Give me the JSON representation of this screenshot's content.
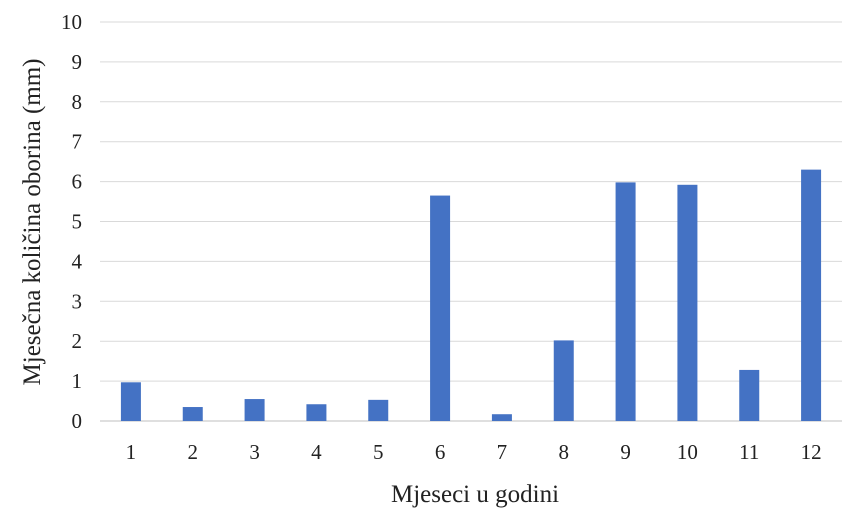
{
  "chart_data": {
    "type": "bar",
    "title": "",
    "xlabel": "Mjeseci u godini",
    "ylabel": "Mjesečna količina oborina (mm)",
    "categories": [
      "1",
      "2",
      "3",
      "4",
      "5",
      "6",
      "7",
      "8",
      "9",
      "10",
      "11",
      "12"
    ],
    "values": [
      0.97,
      0.35,
      0.55,
      0.42,
      0.53,
      5.65,
      0.17,
      2.02,
      5.98,
      5.92,
      1.28,
      6.3
    ],
    "ylim": [
      0,
      10
    ],
    "yticks": [
      "0",
      "1",
      "2",
      "3",
      "4",
      "5",
      "6",
      "7",
      "8",
      "9",
      "10"
    ],
    "grid": true,
    "legend": "none",
    "bar_color": "#4472C4"
  }
}
